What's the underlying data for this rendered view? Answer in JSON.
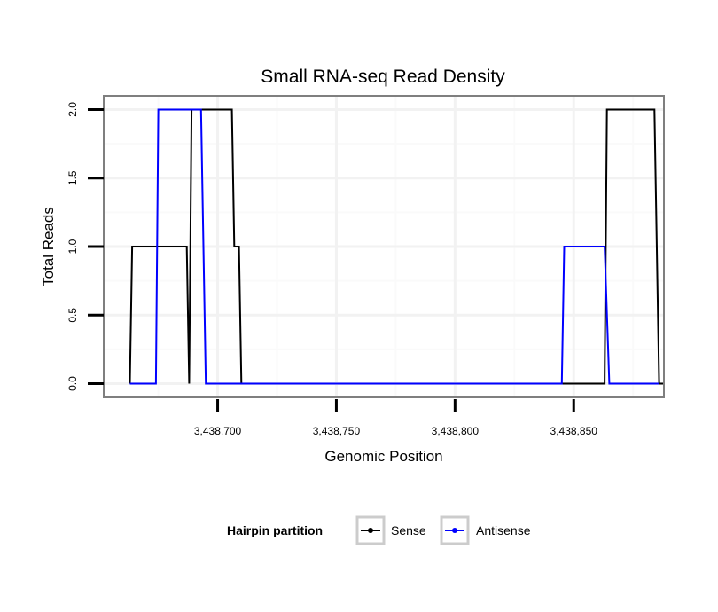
{
  "chart_data": {
    "type": "line",
    "title": "Small RNA-seq Read Density",
    "xlabel": "Genomic Position",
    "ylabel": "Total Reads",
    "xlim": [
      3438652,
      3438888
    ],
    "ylim": [
      -0.1,
      2.1
    ],
    "x_ticks": [
      3438700,
      3438750,
      3438800,
      3438850
    ],
    "x_tick_labels": [
      "3,438,700",
      "3,438,750",
      "3,438,800",
      "3,438,850"
    ],
    "y_ticks": [
      0,
      0.5,
      1,
      1.5,
      2
    ],
    "y_tick_labels": [
      "0.0",
      "0.5",
      "1.0",
      "1.5",
      "2.0"
    ],
    "grid": true,
    "legend": {
      "title": "Hairpin partition",
      "position": "bottom"
    },
    "series": [
      {
        "name": "Sense",
        "color": "#000000",
        "x": [
          3438663,
          3438664,
          3438687,
          3438688,
          3438689,
          3438706,
          3438707,
          3438709,
          3438710,
          3438863,
          3438864,
          3438884,
          3438886,
          3438888
        ],
        "y": [
          0,
          1,
          1,
          0,
          2,
          2,
          1,
          1,
          0,
          0,
          2,
          2,
          0,
          0
        ]
      },
      {
        "name": "Antisense",
        "color": "#0000ff",
        "x": [
          3438663,
          3438674,
          3438675,
          3438693,
          3438695,
          3438710,
          3438845,
          3438846,
          3438863,
          3438865,
          3438886
        ],
        "y": [
          0,
          0,
          2,
          2,
          0,
          0,
          0,
          1,
          1,
          0,
          0
        ]
      }
    ]
  }
}
